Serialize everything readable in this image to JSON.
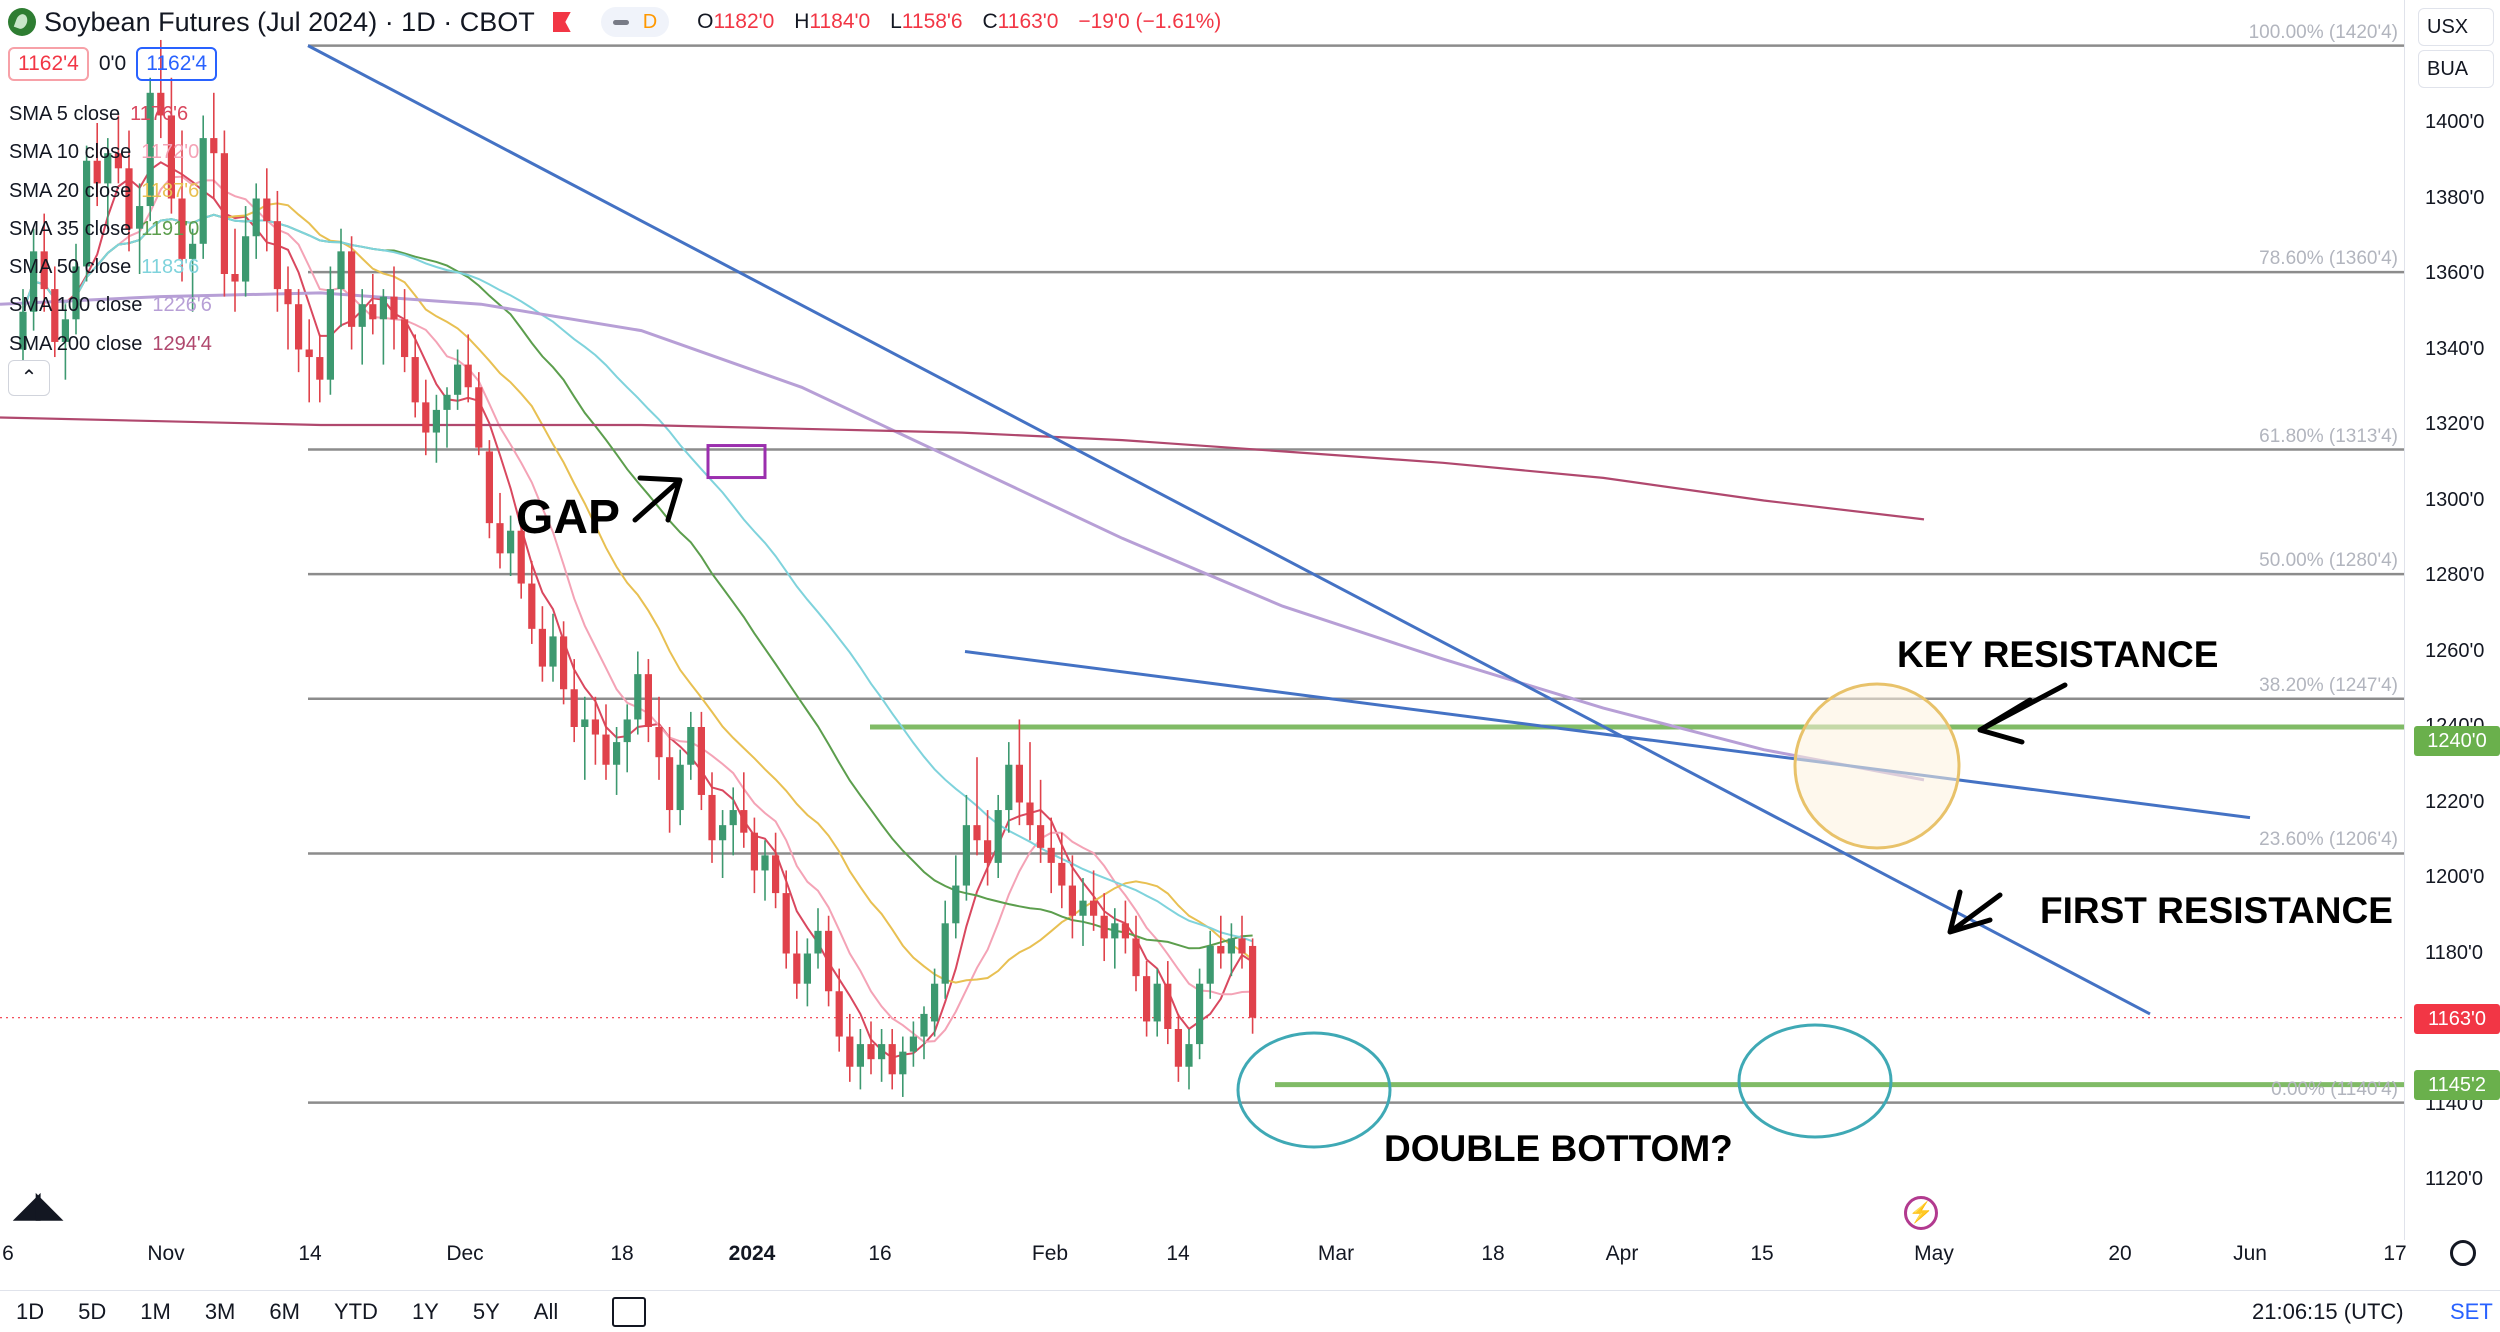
{
  "header": {
    "title": "Soybean Futures (Jul 2024) · 1D · CBOT",
    "pill_label": "D",
    "ohlc": {
      "o_label": "O",
      "o": "1182'0",
      "h_label": "H",
      "h": "1184'0",
      "l_label": "L",
      "l": "1158'6",
      "c_label": "C",
      "c": "1163'0",
      "change": "−19'0 (−1.61%)"
    }
  },
  "counters": {
    "bid": "1162'4",
    "spread": "0'0",
    "ask": "1162'4"
  },
  "indicators": [
    {
      "name": "SMA 5 close",
      "value": "1176'6",
      "color": "#d9485f"
    },
    {
      "name": "SMA 10 close",
      "value": "1172'0",
      "color": "#f4a3b6"
    },
    {
      "name": "SMA 20 close",
      "value": "1187'6",
      "color": "#e8c052"
    },
    {
      "name": "SMA 35 close",
      "value": "1191'0",
      "color": "#5c9e4d"
    },
    {
      "name": "SMA 50 close",
      "value": "1183'6",
      "color": "#7fd3dc"
    },
    {
      "name": "SMA 100 close",
      "value": "1226'6",
      "color": "#b79fd6"
    },
    {
      "name": "SMA 200 close",
      "value": "1294'4",
      "color": "#b0486e"
    }
  ],
  "collapse_icon": "chevron-up-icon",
  "currency": {
    "unit": "USX",
    "multiplier": "BUA"
  },
  "price_tags": {
    "last": "1163'0",
    "resistance": "1240'0",
    "support": "1145'2"
  },
  "footer": {
    "ranges": [
      "1D",
      "5D",
      "1M",
      "3M",
      "6M",
      "YTD",
      "1Y",
      "5Y",
      "All"
    ],
    "time": "21:06:15 (UTC)",
    "session": "SET"
  },
  "annotations": {
    "gap": "GAP",
    "key_resistance": "KEY RESISTANCE",
    "first_resistance": "FIRST RESISTANCE",
    "double_bottom": "DOUBLE BOTTOM?"
  },
  "colors": {
    "up": "#3d9970",
    "down": "#e0424b",
    "trend": "#4472c4",
    "green_level": "#6ab04c",
    "fib": "#8c8c8c"
  },
  "chart_data": {
    "type": "candlestick",
    "title": "Soybean Futures (Jul 2024) · 1D · CBOT",
    "ylim": [
      1110,
      1430
    ],
    "y_ticks": [
      1120,
      1140,
      1160,
      1180,
      1200,
      1220,
      1240,
      1260,
      1280,
      1300,
      1320,
      1340,
      1360,
      1380,
      1400
    ],
    "y_tick_labels": [
      "1120'0",
      "1140'0",
      "1160'0",
      "1180'0",
      "1200'0",
      "1220'0",
      "1240'0",
      "1260'0",
      "1280'0",
      "1300'0",
      "1320'0",
      "1340'0",
      "1360'0",
      "1380'0",
      "1400'0"
    ],
    "x_labels": [
      "6",
      "Nov",
      "14",
      "Dec",
      "18",
      "2024",
      "16",
      "Feb",
      "14",
      "Mar",
      "18",
      "Apr",
      "15",
      "May",
      "20",
      "Jun",
      "17"
    ],
    "fib_levels": [
      {
        "pct": "100.00%",
        "price": 1420.5,
        "label": "100.00% (1420'4)"
      },
      {
        "pct": "78.60%",
        "price": 1360.5,
        "label": "78.60% (1360'4)"
      },
      {
        "pct": "61.80%",
        "price": 1313.5,
        "label": "61.80% (1313'4)"
      },
      {
        "pct": "50.00%",
        "price": 1280.5,
        "label": "50.00% (1280'4)"
      },
      {
        "pct": "38.20%",
        "price": 1247.5,
        "label": "38.20% (1247'4)"
      },
      {
        "pct": "23.60%",
        "price": 1206.5,
        "label": "23.60% (1206'4)"
      },
      {
        "pct": "0.00%",
        "price": 1140.5,
        "label": "0.00% (1140'4)"
      }
    ],
    "horizontal_levels": [
      1240,
      1145.25
    ],
    "last_price": 1163,
    "candles_ohlc": [
      [
        1340,
        1356,
        1332,
        1350
      ],
      [
        1350,
        1372,
        1345,
        1366
      ],
      [
        1366,
        1376,
        1350,
        1356
      ],
      [
        1356,
        1362,
        1338,
        1342
      ],
      [
        1342,
        1352,
        1332,
        1348
      ],
      [
        1348,
        1368,
        1344,
        1362
      ],
      [
        1362,
        1394,
        1358,
        1390
      ],
      [
        1390,
        1400,
        1378,
        1384
      ],
      [
        1384,
        1396,
        1372,
        1392
      ],
      [
        1392,
        1402,
        1384,
        1388
      ],
      [
        1388,
        1398,
        1366,
        1372
      ],
      [
        1372,
        1384,
        1360,
        1378
      ],
      [
        1378,
        1412,
        1374,
        1408
      ],
      [
        1408,
        1422,
        1396,
        1402
      ],
      [
        1402,
        1412,
        1376,
        1380
      ],
      [
        1380,
        1398,
        1358,
        1364
      ],
      [
        1364,
        1372,
        1350,
        1368
      ],
      [
        1368,
        1402,
        1364,
        1396
      ],
      [
        1396,
        1408,
        1380,
        1392
      ],
      [
        1392,
        1398,
        1354,
        1360
      ],
      [
        1360,
        1372,
        1350,
        1358
      ],
      [
        1358,
        1378,
        1354,
        1370
      ],
      [
        1370,
        1384,
        1364,
        1380
      ],
      [
        1380,
        1388,
        1366,
        1374
      ],
      [
        1374,
        1382,
        1350,
        1356
      ],
      [
        1356,
        1362,
        1340,
        1352
      ],
      [
        1352,
        1356,
        1334,
        1340
      ],
      [
        1340,
        1348,
        1326,
        1338
      ],
      [
        1338,
        1344,
        1326,
        1332
      ],
      [
        1332,
        1362,
        1328,
        1356
      ],
      [
        1356,
        1372,
        1346,
        1366
      ],
      [
        1366,
        1370,
        1340,
        1346
      ],
      [
        1346,
        1356,
        1336,
        1352
      ],
      [
        1352,
        1360,
        1344,
        1348
      ],
      [
        1348,
        1356,
        1336,
        1354
      ],
      [
        1354,
        1362,
        1340,
        1348
      ],
      [
        1348,
        1356,
        1334,
        1338
      ],
      [
        1338,
        1344,
        1322,
        1326
      ],
      [
        1326,
        1332,
        1312,
        1318
      ],
      [
        1318,
        1328,
        1310,
        1324
      ],
      [
        1324,
        1330,
        1314,
        1328
      ],
      [
        1328,
        1340,
        1324,
        1336
      ],
      [
        1336,
        1344,
        1326,
        1330
      ],
      [
        1330,
        1334,
        1312,
        1314
      ],
      [
        1313,
        1316,
        1290,
        1294
      ],
      [
        1294,
        1302,
        1282,
        1286
      ],
      [
        1286,
        1296,
        1280,
        1292
      ],
      [
        1292,
        1298,
        1274,
        1278
      ],
      [
        1278,
        1284,
        1262,
        1266
      ],
      [
        1266,
        1272,
        1252,
        1256
      ],
      [
        1256,
        1270,
        1252,
        1264
      ],
      [
        1264,
        1268,
        1246,
        1250
      ],
      [
        1250,
        1258,
        1236,
        1240
      ],
      [
        1240,
        1248,
        1226,
        1242
      ],
      [
        1242,
        1248,
        1230,
        1238
      ],
      [
        1238,
        1246,
        1226,
        1230
      ],
      [
        1230,
        1240,
        1222,
        1236
      ],
      [
        1236,
        1246,
        1228,
        1242
      ],
      [
        1242,
        1260,
        1238,
        1254
      ],
      [
        1254,
        1258,
        1236,
        1240
      ],
      [
        1240,
        1248,
        1226,
        1232
      ],
      [
        1232,
        1240,
        1212,
        1218
      ],
      [
        1218,
        1234,
        1214,
        1230
      ],
      [
        1230,
        1244,
        1226,
        1240
      ],
      [
        1240,
        1244,
        1218,
        1222
      ],
      [
        1222,
        1228,
        1204,
        1210
      ],
      [
        1210,
        1218,
        1200,
        1214
      ],
      [
        1214,
        1224,
        1206,
        1218
      ],
      [
        1218,
        1228,
        1208,
        1212
      ],
      [
        1212,
        1216,
        1196,
        1202
      ],
      [
        1202,
        1210,
        1194,
        1206
      ],
      [
        1206,
        1212,
        1192,
        1196
      ],
      [
        1196,
        1202,
        1176,
        1180
      ],
      [
        1180,
        1186,
        1168,
        1172
      ],
      [
        1172,
        1184,
        1166,
        1180
      ],
      [
        1180,
        1192,
        1176,
        1186
      ],
      [
        1186,
        1190,
        1166,
        1170
      ],
      [
        1170,
        1176,
        1154,
        1158
      ],
      [
        1158,
        1164,
        1146,
        1150
      ],
      [
        1150,
        1160,
        1144,
        1156
      ],
      [
        1156,
        1162,
        1148,
        1152
      ],
      [
        1152,
        1160,
        1146,
        1156
      ],
      [
        1156,
        1160,
        1144,
        1148
      ],
      [
        1148,
        1158,
        1142,
        1154
      ],
      [
        1154,
        1162,
        1150,
        1158
      ],
      [
        1158,
        1166,
        1152,
        1164
      ],
      [
        1162,
        1176,
        1158,
        1172
      ],
      [
        1172,
        1194,
        1168,
        1188
      ],
      [
        1188,
        1206,
        1184,
        1198
      ],
      [
        1198,
        1222,
        1194,
        1214
      ],
      [
        1214,
        1232,
        1206,
        1210
      ],
      [
        1210,
        1218,
        1198,
        1204
      ],
      [
        1204,
        1222,
        1200,
        1218
      ],
      [
        1218,
        1236,
        1212,
        1230
      ],
      [
        1230,
        1242,
        1214,
        1220
      ],
      [
        1220,
        1236,
        1210,
        1214
      ],
      [
        1214,
        1226,
        1204,
        1208
      ],
      [
        1208,
        1216,
        1196,
        1204
      ],
      [
        1204,
        1212,
        1192,
        1198
      ],
      [
        1198,
        1206,
        1184,
        1190
      ],
      [
        1190,
        1200,
        1182,
        1194
      ],
      [
        1194,
        1202,
        1186,
        1190
      ],
      [
        1190,
        1196,
        1178,
        1184
      ],
      [
        1184,
        1192,
        1176,
        1188
      ],
      [
        1188,
        1194,
        1180,
        1184
      ],
      [
        1184,
        1190,
        1170,
        1174
      ],
      [
        1174,
        1178,
        1158,
        1162
      ],
      [
        1162,
        1176,
        1158,
        1172
      ],
      [
        1172,
        1178,
        1156,
        1160
      ],
      [
        1160,
        1164,
        1146,
        1150
      ],
      [
        1150,
        1160,
        1144,
        1156
      ],
      [
        1156,
        1176,
        1152,
        1172
      ],
      [
        1172,
        1186,
        1168,
        1182
      ],
      [
        1182,
        1190,
        1176,
        1180
      ],
      [
        1180,
        1188,
        1174,
        1184
      ],
      [
        1184,
        1190,
        1176,
        1180
      ],
      [
        1182,
        1184,
        1158.75,
        1163
      ]
    ]
  }
}
